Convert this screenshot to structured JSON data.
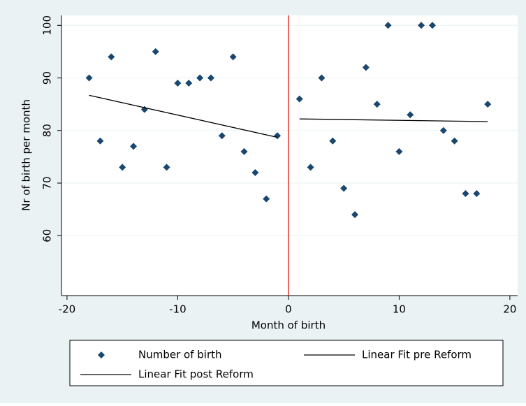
{
  "chart_data": {
    "type": "scatter",
    "x_label": "Month of birth",
    "y_label": "Nr of birth per month",
    "xlim": [
      -20.5,
      20.7
    ],
    "ylim": [
      48.6,
      101.9
    ],
    "xticks": [
      -20,
      -10,
      0,
      10,
      20
    ],
    "yticks": [
      60,
      70,
      80,
      90,
      100
    ],
    "grid": true,
    "reference_line": {
      "x": 0,
      "color": "#e8352a"
    },
    "series": [
      {
        "name": "Number of birth",
        "type": "scatter",
        "color": "#1a476f",
        "x": [
          -18,
          -17,
          -16,
          -15,
          -14,
          -13,
          -12,
          -11,
          -10,
          -9,
          -8,
          -7,
          -6,
          -5,
          -4,
          -3,
          -2,
          -1,
          1,
          2,
          3,
          4,
          5,
          6,
          7,
          8,
          9,
          10,
          11,
          12,
          13,
          14,
          15,
          16,
          17,
          18
        ],
        "values": [
          90,
          78,
          94,
          73,
          77,
          84,
          95,
          73,
          89,
          89,
          90,
          90,
          79,
          94,
          76,
          72,
          67,
          79,
          86,
          73,
          90,
          78,
          69,
          64,
          92,
          85,
          100,
          76,
          83,
          100,
          100,
          80,
          78,
          68,
          68,
          85
        ]
      },
      {
        "name": "Linear Fit pre Reform",
        "type": "line",
        "color": "#000000",
        "x": [
          -18,
          -1
        ],
        "values": [
          86.7,
          78.7
        ]
      },
      {
        "name": "Linear Fit post Reform",
        "type": "line",
        "color": "#000000",
        "x": [
          1,
          18
        ],
        "values": [
          82.2,
          81.7
        ]
      }
    ]
  }
}
